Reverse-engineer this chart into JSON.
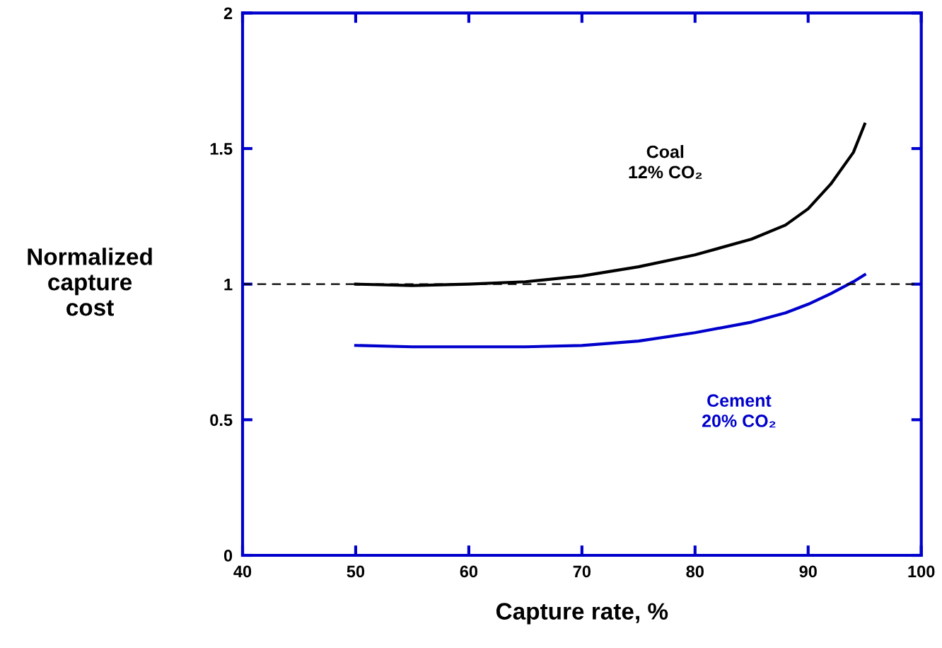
{
  "chart_data": {
    "type": "line",
    "xlabel": "Capture rate, %",
    "ylabel": "Normalized\ncapture\ncost",
    "x": [
      50,
      55,
      60,
      65,
      70,
      75,
      80,
      85,
      88,
      90,
      92,
      94,
      95
    ],
    "series": [
      {
        "name": "Coal\n12% CO₂",
        "color": "#000000",
        "values": [
          1.0,
          0.995,
          1.0,
          1.009,
          1.03,
          1.064,
          1.108,
          1.166,
          1.218,
          1.278,
          1.369,
          1.486,
          1.59
        ]
      },
      {
        "name": "Cement\n20% CO₂",
        "color": "#0000cc",
        "values": [
          0.774,
          0.769,
          0.769,
          0.769,
          0.774,
          0.79,
          0.821,
          0.86,
          0.894,
          0.926,
          0.965,
          1.009,
          1.035
        ]
      }
    ],
    "xlim": [
      40,
      100
    ],
    "xticks": [
      40,
      50,
      60,
      70,
      80,
      90,
      100
    ],
    "ylim": [
      0,
      2
    ],
    "yticks": [
      0,
      0.5,
      1,
      1.5,
      2
    ],
    "ref_lines": [
      {
        "axis": "y",
        "value": 1,
        "color": "#000000",
        "line_style": "dashed"
      }
    ],
    "grid": false,
    "legend": false,
    "marker": "none",
    "line_style": "solid"
  }
}
